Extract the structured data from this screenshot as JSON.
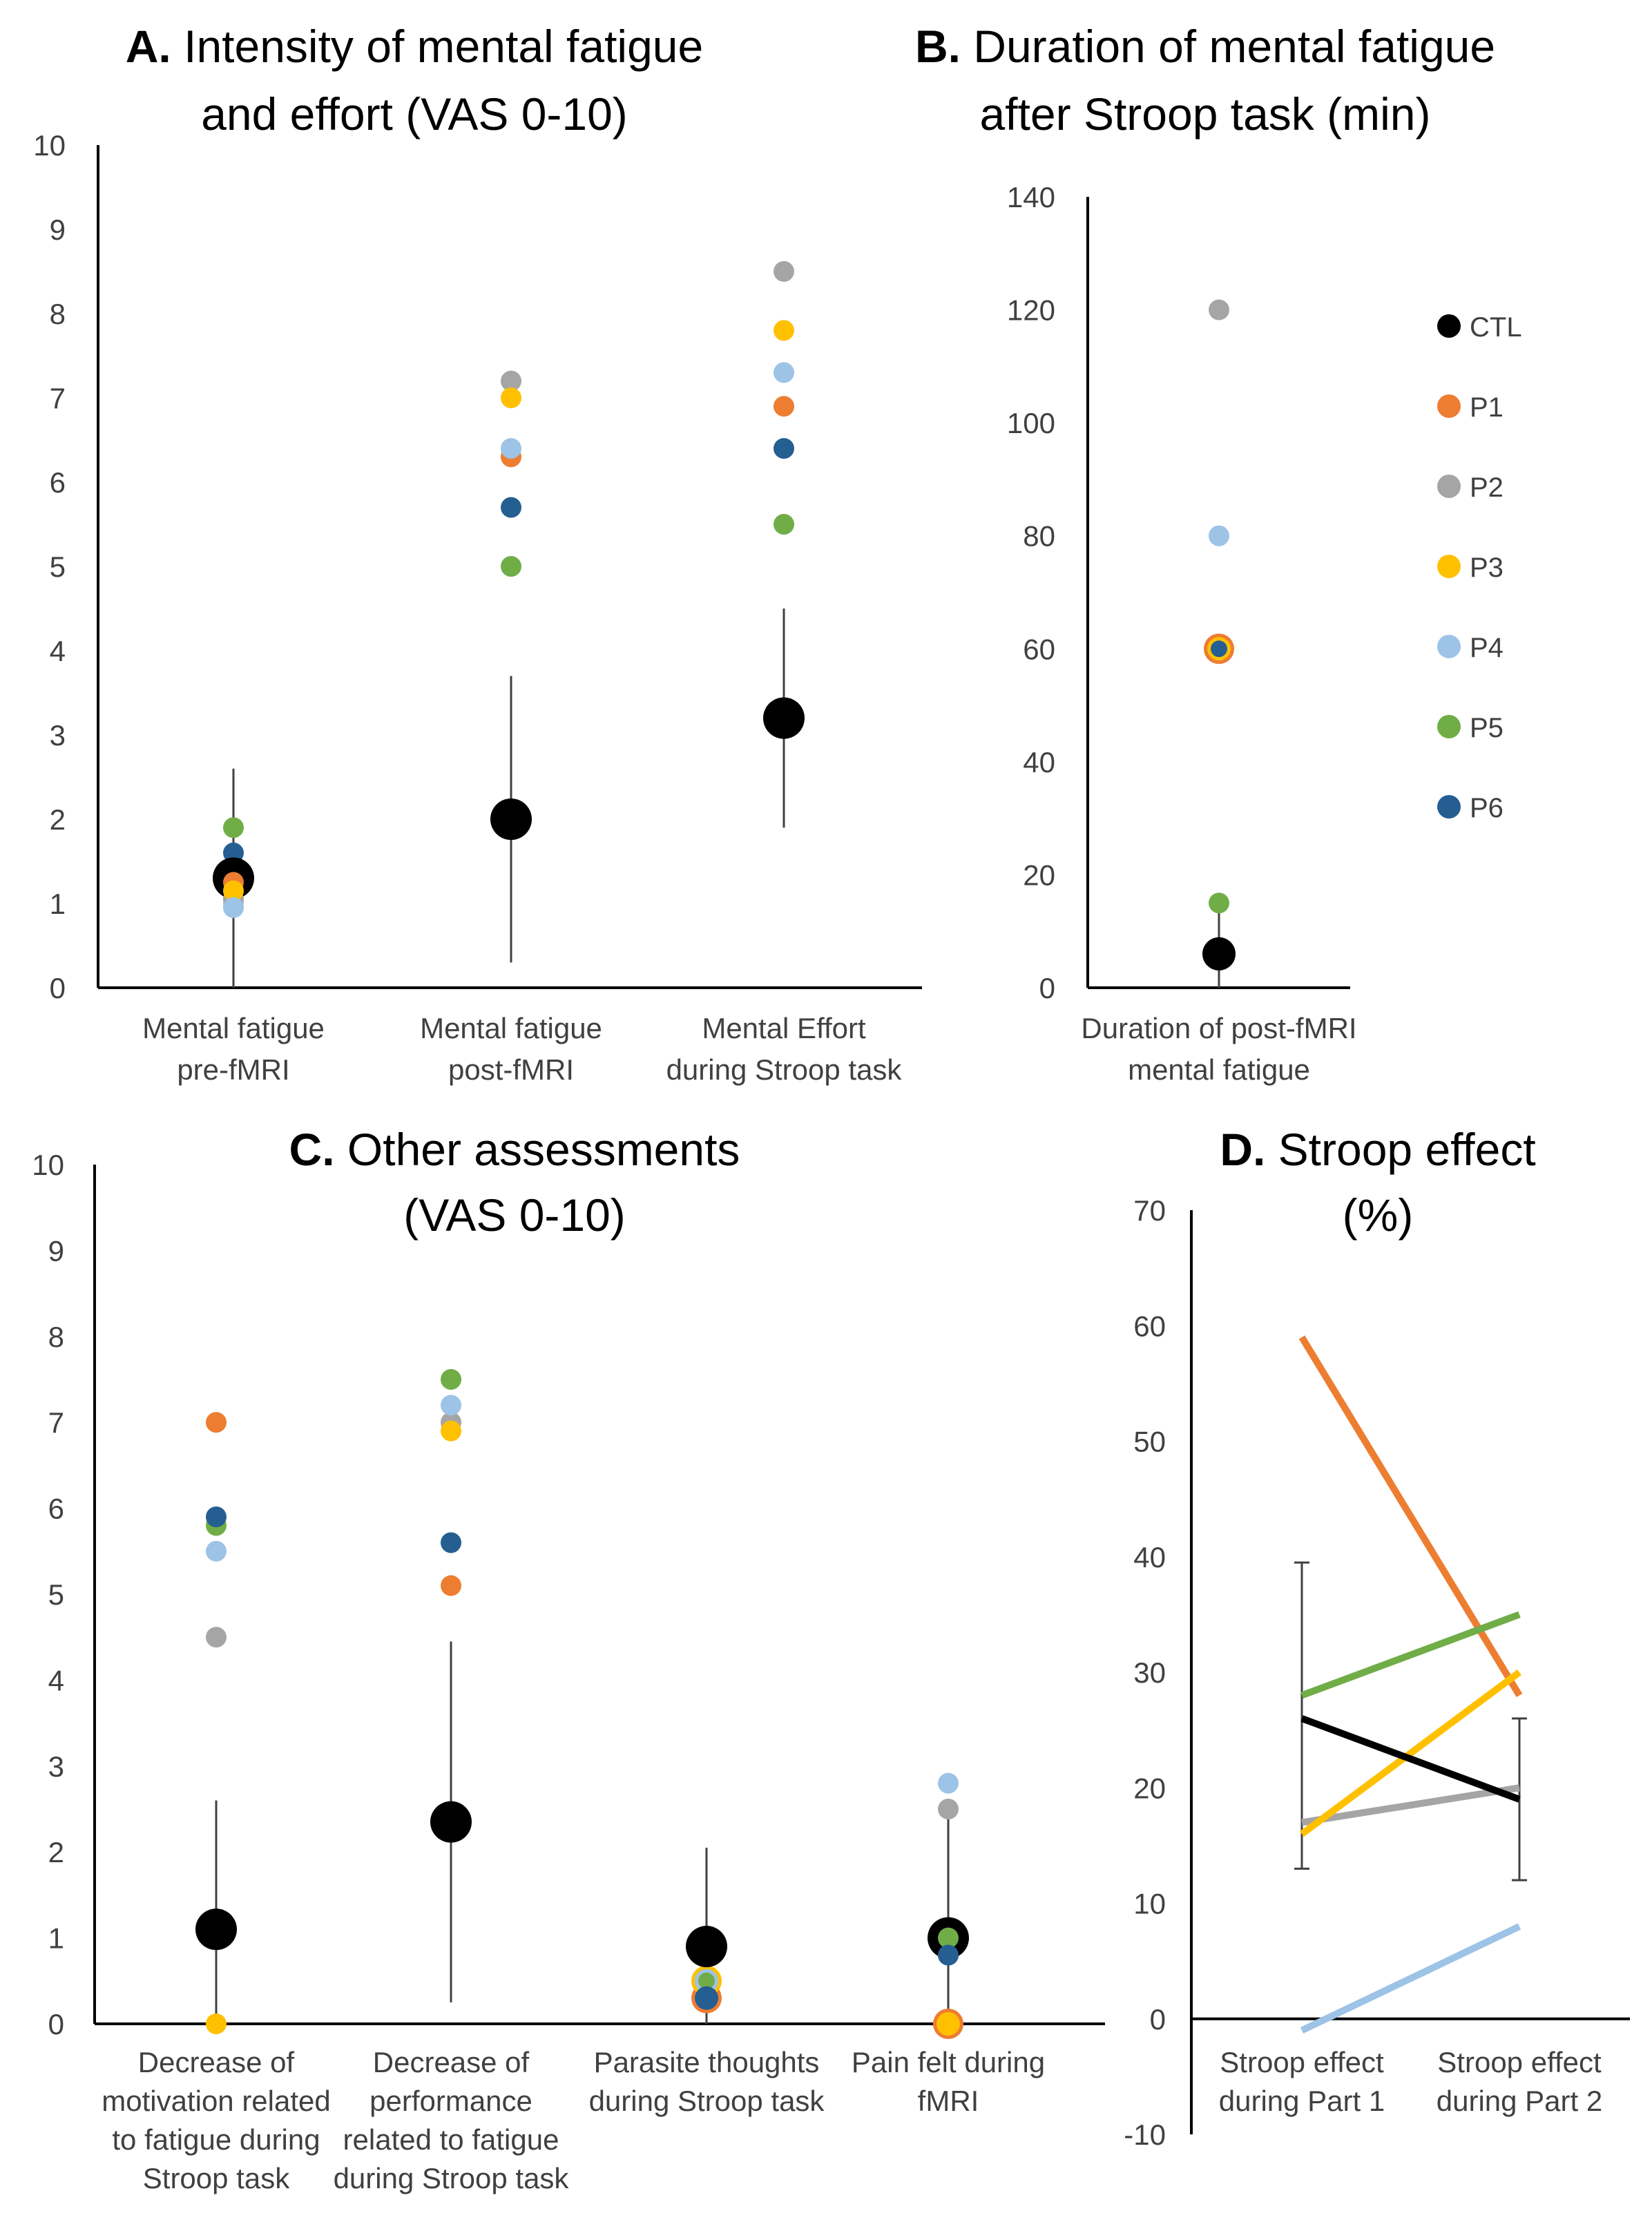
{
  "colors": {
    "CTL": "#000000",
    "P1": "#ED7D31",
    "P2": "#A5A5A5",
    "P3": "#FFC000",
    "P4": "#9DC3E6",
    "P5": "#70AD47",
    "P6": "#255E91"
  },
  "legend": [
    "CTL",
    "P1",
    "P2",
    "P3",
    "P4",
    "P5",
    "P6"
  ],
  "chart_data": [
    {
      "id": "A",
      "type": "scatter",
      "title_prefix": "A.",
      "title_line1": "Intensity of mental fatigue",
      "title_line2": "and effort (VAS 0-10)",
      "ylim": [
        0,
        10
      ],
      "yticks": [
        "0",
        "1",
        "2",
        "3",
        "4",
        "5",
        "6",
        "7",
        "8",
        "9",
        "10"
      ],
      "categories": [
        [
          "Mental fatigue",
          "pre-fMRI"
        ],
        [
          "Mental fatigue",
          "post-fMRI"
        ],
        [
          "Mental Effort",
          "during Stroop task"
        ]
      ],
      "ctl": {
        "mean": [
          1.3,
          2.0,
          3.2
        ],
        "err_low": [
          0,
          0.3,
          1.9
        ],
        "err_high": [
          2.6,
          3.7,
          4.5
        ]
      },
      "series": [
        {
          "name": "P1",
          "values": [
            1.3,
            6.3,
            6.9
          ]
        },
        {
          "name": "P2",
          "values": [
            1.1,
            7.2,
            8.5
          ]
        },
        {
          "name": "P3",
          "values": [
            1.2,
            7.0,
            7.8
          ]
        },
        {
          "name": "P4",
          "values": [
            1.0,
            6.4,
            7.3
          ]
        },
        {
          "name": "P5",
          "values": [
            1.9,
            5.0,
            5.5
          ]
        },
        {
          "name": "P6",
          "values": [
            1.6,
            5.7,
            6.4
          ]
        }
      ]
    },
    {
      "id": "B",
      "type": "scatter",
      "title_prefix": "B.",
      "title_line1": "Duration of mental fatigue",
      "title_line2": "after Stroop task (min)",
      "ylim": [
        0,
        140
      ],
      "yticks": [
        "0",
        "20",
        "40",
        "60",
        "80",
        "100",
        "120",
        "140"
      ],
      "categories": [
        [
          "Duration of post-fMRI",
          "mental fatigue"
        ]
      ],
      "ctl": {
        "mean": [
          6
        ],
        "err_low": [
          0
        ],
        "err_high": [
          14
        ]
      },
      "series": [
        {
          "name": "P1",
          "values": [
            60
          ]
        },
        {
          "name": "P2",
          "values": [
            120
          ]
        },
        {
          "name": "P3",
          "values": [
            60
          ]
        },
        {
          "name": "P4",
          "values": [
            80
          ]
        },
        {
          "name": "P5",
          "values": [
            15
          ]
        },
        {
          "name": "P6",
          "values": [
            60
          ]
        }
      ]
    },
    {
      "id": "C",
      "type": "scatter",
      "title_prefix": "C.",
      "title_line1": "Other assessments",
      "title_line2": "(VAS 0-10)",
      "ylim": [
        0,
        10
      ],
      "yticks": [
        "0",
        "1",
        "2",
        "3",
        "4",
        "5",
        "6",
        "7",
        "8",
        "9",
        "10"
      ],
      "categories": [
        [
          "Decrease of",
          "motivation related",
          "to fatigue during",
          "Stroop task"
        ],
        [
          "Decrease of",
          "performance",
          "related to fatigue",
          "during Stroop task"
        ],
        [
          "Parasite thoughts",
          "during Stroop task"
        ],
        [
          "Pain felt during",
          "fMRI"
        ]
      ],
      "ctl": {
        "mean": [
          1.1,
          2.35,
          0.9,
          1.0
        ],
        "err_low": [
          0,
          0.25,
          0,
          0
        ],
        "err_high": [
          2.6,
          4.45,
          2.05,
          2.4
        ]
      },
      "series": [
        {
          "name": "P1",
          "values": [
            7.0,
            5.1,
            0.3,
            0
          ]
        },
        {
          "name": "P2",
          "values": [
            4.5,
            7.0,
            0.4,
            2.5
          ]
        },
        {
          "name": "P3",
          "values": [
            0,
            6.9,
            0.5,
            0
          ]
        },
        {
          "name": "P4",
          "values": [
            5.5,
            7.2,
            0.5,
            2.8
          ]
        },
        {
          "name": "P5",
          "values": [
            5.8,
            7.5,
            0.5,
            1.0
          ]
        },
        {
          "name": "P6",
          "values": [
            5.9,
            5.6,
            0.3,
            0.8
          ]
        }
      ]
    },
    {
      "id": "D",
      "type": "line",
      "title_prefix": "D.",
      "title_line1": "Stroop effect",
      "title_line2": "(%)",
      "ylim": [
        -10,
        70
      ],
      "yticks": [
        "-10",
        "0",
        "10",
        "20",
        "30",
        "40",
        "50",
        "60",
        "70"
      ],
      "categories": [
        [
          "Stroop effect",
          "during Part 1"
        ],
        [
          "Stroop effect",
          "during Part 2"
        ]
      ],
      "ctl": {
        "mean": [
          26,
          19
        ],
        "err_low": [
          13,
          12
        ],
        "err_high": [
          39.5,
          26
        ]
      },
      "series": [
        {
          "name": "P1",
          "values": [
            59,
            28
          ]
        },
        {
          "name": "P2",
          "values": [
            17,
            20
          ]
        },
        {
          "name": "P3",
          "values": [
            16,
            30
          ]
        },
        {
          "name": "P4",
          "values": [
            -1,
            8
          ]
        },
        {
          "name": "P5",
          "values": [
            28,
            35
          ]
        },
        {
          "name": "P6",
          "values": [
            null,
            null
          ]
        }
      ]
    }
  ]
}
